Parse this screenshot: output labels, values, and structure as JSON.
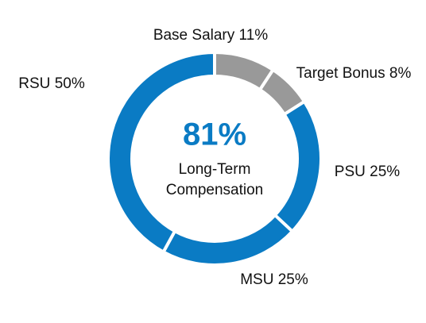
{
  "chart_data": {
    "type": "donut",
    "categories": [
      "Base Salary",
      "Target Bonus",
      "PSU",
      "MSU",
      "RSU"
    ],
    "values": [
      11,
      8,
      25,
      25,
      50
    ],
    "value_labels": [
      "11%",
      "8%",
      "25%",
      "25%",
      "50%"
    ],
    "colors": [
      "#999999",
      "#999999",
      "#0a7bc4",
      "#0a7bc4",
      "#0a7bc4"
    ],
    "center_label": "81%",
    "center_caption": [
      "Long-Term",
      "Compensation"
    ]
  }
}
